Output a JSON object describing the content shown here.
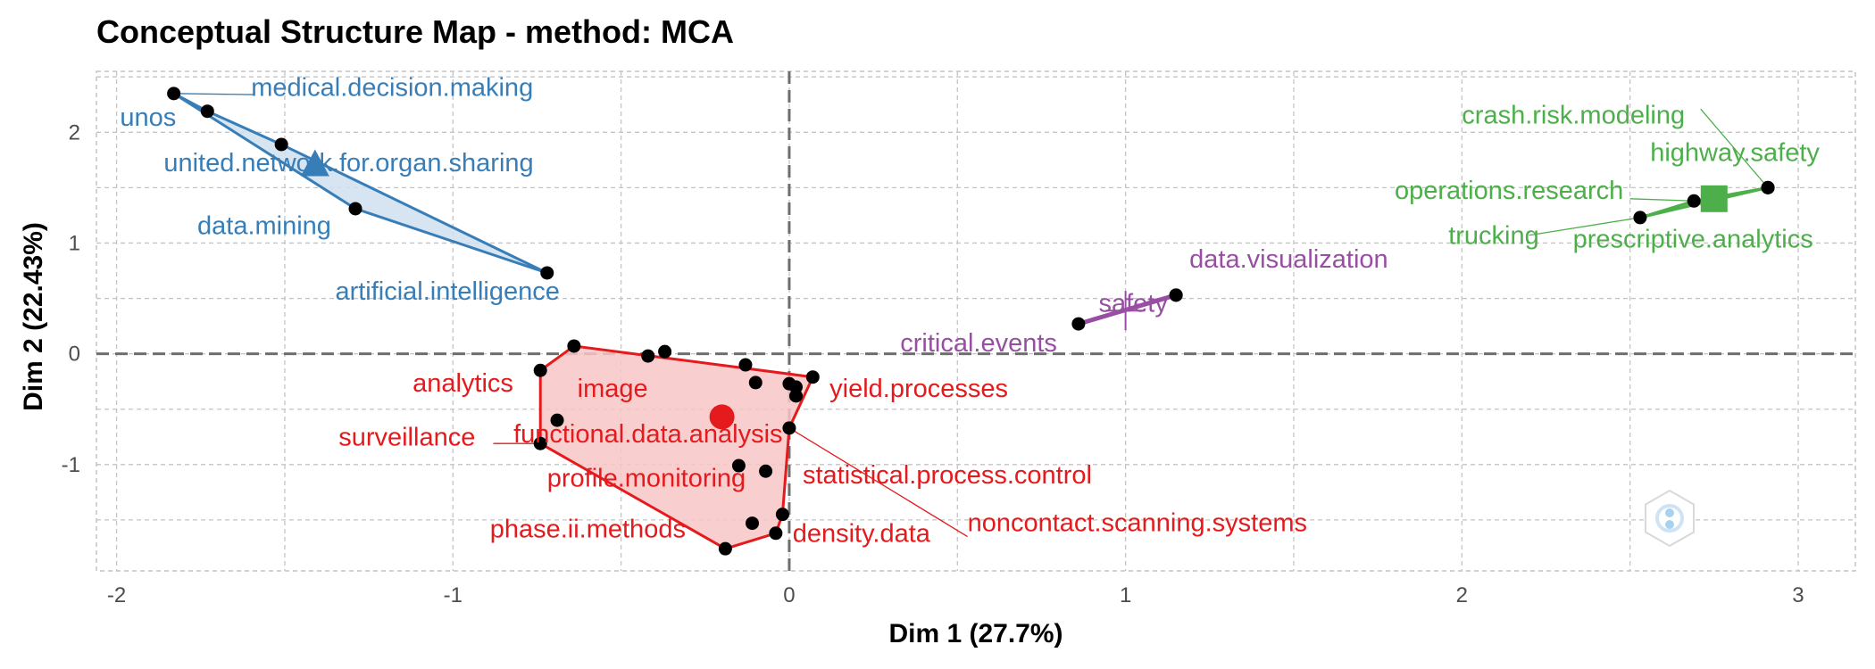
{
  "chart_data": {
    "type": "scatter",
    "title": "Conceptual Structure Map - method: MCA",
    "xlabel": "Dim 1 (27.7%)",
    "ylabel": "Dim 2 (22.43%)",
    "xlim": [
      -2.06,
      3.17
    ],
    "ylim": [
      -1.96,
      2.55
    ],
    "x_ticks": [
      -2,
      -1,
      0,
      1,
      2,
      3
    ],
    "y_ticks": [
      -1,
      0,
      1,
      2
    ],
    "grid": true,
    "reference_lines": {
      "x": 0,
      "y": 0,
      "style": "dashed"
    },
    "clusters": [
      {
        "id": 1,
        "color": "#e41a1c",
        "fill": "#f7c6c7",
        "centroid": {
          "x": -0.2,
          "y": -0.57,
          "marker": "circle"
        },
        "points": [
          {
            "x": -0.64,
            "y": 0.07,
            "label": ""
          },
          {
            "x": -0.74,
            "y": -0.15,
            "label": "analytics"
          },
          {
            "x": -0.69,
            "y": -0.6,
            "label": "image"
          },
          {
            "x": -0.74,
            "y": -0.81,
            "label": "surveillance"
          },
          {
            "x": -0.19,
            "y": -1.76,
            "label": "phase.ii.methods"
          },
          {
            "x": -0.04,
            "y": -1.62,
            "label": ""
          },
          {
            "x": -0.02,
            "y": -1.45,
            "label": "density.data"
          },
          {
            "x": 0.0,
            "y": -0.67,
            "label": "noncontact.scanning.systems"
          },
          {
            "x": 0.02,
            "y": -0.38,
            "label": ""
          },
          {
            "x": 0.02,
            "y": -0.3,
            "label": ""
          },
          {
            "x": 0.07,
            "y": -0.21,
            "label": "yield.processes"
          },
          {
            "x": -0.37,
            "y": 0.02,
            "label": ""
          },
          {
            "x": -0.42,
            "y": -0.02,
            "label": ""
          },
          {
            "x": -0.13,
            "y": -0.1,
            "label": ""
          },
          {
            "x": -0.1,
            "y": -0.26,
            "label": ""
          },
          {
            "x": 0.0,
            "y": -0.27,
            "label": ""
          },
          {
            "x": -0.15,
            "y": -1.01,
            "label": "functional.data.analysis"
          },
          {
            "x": -0.07,
            "y": -1.06,
            "label": "profile.monitoring"
          },
          {
            "x": -0.11,
            "y": -1.53,
            "label": "statistical.process.control"
          }
        ],
        "hull": [
          0,
          10,
          7,
          6,
          5,
          4,
          3,
          1
        ]
      },
      {
        "id": 2,
        "color": "#377eb8",
        "fill": "#cfe0ef",
        "centroid": {
          "x": -1.41,
          "y": 1.7,
          "marker": "triangle"
        },
        "points": [
          {
            "x": -1.83,
            "y": 2.35,
            "label": "medical.decision.making"
          },
          {
            "x": -1.73,
            "y": 2.19,
            "label": "unos"
          },
          {
            "x": -1.51,
            "y": 1.89,
            "label": "united.network.for.organ.sharing"
          },
          {
            "x": -1.29,
            "y": 1.31,
            "label": "data.mining"
          },
          {
            "x": -0.72,
            "y": 0.73,
            "label": "artificial.intelligence"
          }
        ],
        "hull": [
          0,
          1,
          2,
          4,
          3
        ]
      },
      {
        "id": 3,
        "color": "#4daf4a",
        "fill": "#4daf4a",
        "centroid": {
          "x": 2.75,
          "y": 1.4,
          "marker": "square"
        },
        "points": [
          {
            "x": 2.53,
            "y": 1.23,
            "label": "trucking"
          },
          {
            "x": 2.69,
            "y": 1.38,
            "label": "operations.research"
          },
          {
            "x": 2.91,
            "y": 1.5,
            "label": "highway.safety"
          },
          {
            "x": 2.91,
            "y": 1.5,
            "label": "crash.risk.modeling"
          },
          {
            "x": 2.91,
            "y": 1.5,
            "label": "prescriptive.analytics"
          }
        ],
        "hull": [
          0,
          1,
          2
        ]
      },
      {
        "id": 4,
        "color": "#984ea3",
        "fill": "#984ea3",
        "centroid": {
          "x": 1.0,
          "y": 0.39,
          "marker": "cross"
        },
        "points": [
          {
            "x": 0.86,
            "y": 0.27,
            "label": "critical.events"
          },
          {
            "x": 1.15,
            "y": 0.53,
            "label": "data.visualization"
          },
          {
            "x": 1.15,
            "y": 0.53,
            "label": "safety"
          }
        ],
        "hull": [
          0,
          1
        ]
      }
    ],
    "labels": [
      {
        "text": "medical.decision.making",
        "x": -1.6,
        "y": 2.33,
        "cluster": 2,
        "lx": -1.59,
        "ly": 2.34
      },
      {
        "text": "unos",
        "x": -1.99,
        "y": 2.06,
        "cluster": 2
      },
      {
        "text": "united.network.for.organ.sharing",
        "x": -1.86,
        "y": 1.65,
        "cluster": 2
      },
      {
        "text": "data.mining",
        "x": -1.76,
        "y": 1.08,
        "cluster": 2
      },
      {
        "text": "artificial.intelligence",
        "x": -1.35,
        "y": 0.49,
        "cluster": 2
      },
      {
        "text": "data.visualization",
        "x": 1.19,
        "y": 0.78,
        "cluster": 4
      },
      {
        "text": "safety",
        "x": 0.92,
        "y": 0.38,
        "cluster": 4
      },
      {
        "text": "critical.events",
        "x": 0.33,
        "y": 0.02,
        "cluster": 4
      },
      {
        "text": "crash.risk.modeling",
        "x": 2.0,
        "y": 2.08,
        "cluster": 3,
        "lx": 2.71,
        "ly": 2.21
      },
      {
        "text": "highway.safety",
        "x": 2.56,
        "y": 1.74,
        "cluster": 3
      },
      {
        "text": "operations.research",
        "x": 1.8,
        "y": 1.4,
        "cluster": 3,
        "lx": 2.5,
        "ly": 1.4
      },
      {
        "text": "trucking",
        "x": 1.96,
        "y": 0.99,
        "cluster": 3,
        "lx": 2.2,
        "ly": 1.07
      },
      {
        "text": "prescriptive.analytics",
        "x": 2.33,
        "y": 0.96,
        "cluster": 3
      },
      {
        "text": "analytics",
        "x": -1.12,
        "y": -0.34,
        "cluster": 1
      },
      {
        "text": "image",
        "x": -0.63,
        "y": -0.39,
        "cluster": 1
      },
      {
        "text": "yield.processes",
        "x": 0.12,
        "y": -0.39,
        "cluster": 1
      },
      {
        "text": "surveillance",
        "x": -1.34,
        "y": -0.83,
        "cluster": 1,
        "lx": -0.88,
        "ly": -0.81
      },
      {
        "text": "functional.data.analysis",
        "x": -0.82,
        "y": -0.8,
        "cluster": 1
      },
      {
        "text": "profile.monitoring",
        "x": -0.72,
        "y": -1.2,
        "cluster": 1
      },
      {
        "text": "statistical.process.control",
        "x": 0.04,
        "y": -1.17,
        "cluster": 1
      },
      {
        "text": "noncontact.scanning.systems",
        "x": 0.53,
        "y": -1.6,
        "cluster": 1,
        "lx": 0.53,
        "ly": -1.65
      },
      {
        "text": "phase.ii.methods",
        "x": -0.89,
        "y": -1.66,
        "cluster": 1
      },
      {
        "text": "density.data",
        "x": 0.01,
        "y": -1.7,
        "cluster": 1
      }
    ]
  }
}
